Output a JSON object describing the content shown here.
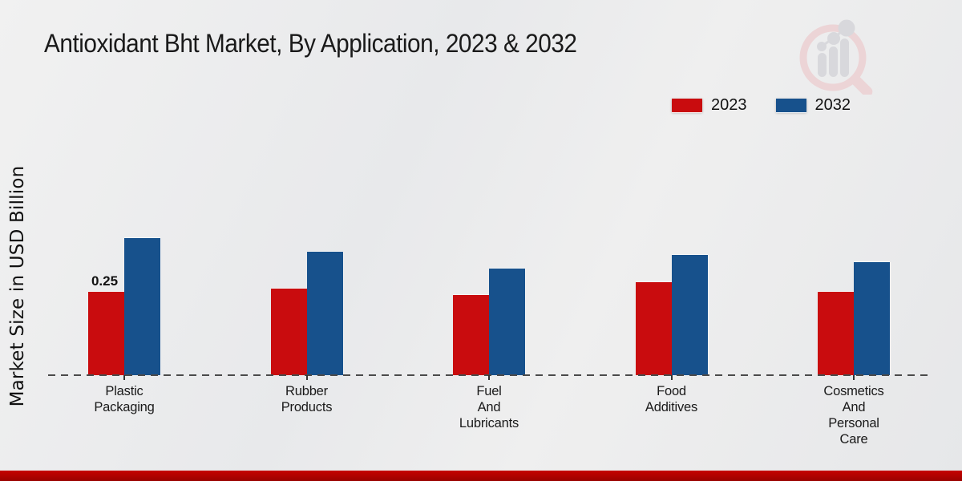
{
  "title": "Antioxidant Bht Market, By Application, 2023 & 2032",
  "colors": {
    "series_2023": "#c90c0e",
    "series_2032": "#17518c",
    "footer_band": "#b00300",
    "baseline": "#4a4a4a",
    "background": "#eaebed"
  },
  "watermark": {
    "name": "magnifier-bar-chart-logo",
    "ring_color": "#eccfd1",
    "bars_color": "#d4d4d9"
  },
  "chart_data": {
    "type": "bar",
    "title": "Antioxidant Bht Market, By Application, 2023 & 2032",
    "xlabel": "",
    "ylabel": "Market Size in USD Billion",
    "ylim": [
      0,
      0.45
    ],
    "grid": false,
    "legend_position": "top-right",
    "baseline_style": "dashed",
    "categories": [
      "Plastic Packaging",
      "Rubber Products",
      "Fuel And Lubricants",
      "Food Additives",
      "Cosmetics And Personal Care"
    ],
    "series": [
      {
        "name": "2023",
        "color": "#c90c0e",
        "values": [
          0.25,
          0.26,
          0.24,
          0.28,
          0.25
        ]
      },
      {
        "name": "2032",
        "color": "#17518c",
        "values": [
          0.41,
          0.37,
          0.32,
          0.36,
          0.34
        ]
      }
    ],
    "annotation": {
      "text": "0.25",
      "series_index": 0,
      "category_index": 0
    }
  }
}
